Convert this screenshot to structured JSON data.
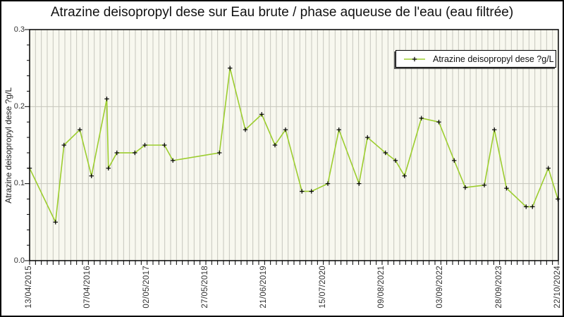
{
  "title": "Atrazine deisopropyl dese sur Eau brute / phase aqueuse de l'eau (eau filtrée)",
  "y_axis_label": "Atrazine deisopropyl dese ?g/L",
  "legend": {
    "label": "Atrazine deisopropyl dese ?g/L"
  },
  "colors": {
    "line": "#9ccd2e",
    "marker": "#000000",
    "plot_bg": "#f8f8ef",
    "grid": "#c6c6bd",
    "frame": "#000000",
    "page_bg": "#ffffff",
    "text": "#222222"
  },
  "chart_data": {
    "type": "line",
    "title": "Atrazine deisopropyl dese sur Eau brute / phase aqueuse de l'eau (eau filtrée)",
    "xlabel": "",
    "ylabel": "Atrazine deisopropyl dese ?g/L",
    "ylim": [
      0.0,
      0.3
    ],
    "y_ticks": [
      0.0,
      0.1,
      0.2,
      0.3
    ],
    "y_tick_labels": [
      "0.0",
      "0.1",
      "0.2",
      "0.3"
    ],
    "y_minor_step": 0.02,
    "h_gridlines_at": [
      0.1,
      0.2
    ],
    "x_tick_labels": [
      "13/04/2015",
      "07/04/2016",
      "02/05/2017",
      "27/05/2018",
      "21/06/2019",
      "15/07/2020",
      "09/08/2021",
      "03/09/2022",
      "28/09/2023",
      "22/10/2024"
    ],
    "x_minor_tick_count": 91,
    "grid": "vertical minor stripes; horizontal lines at 0.1 and 0.2",
    "legend_position": "top-right",
    "x_encoding": "fraction_of_axis_width",
    "series": [
      {
        "name": "Atrazine deisopropyl dese ?g/L",
        "marker": "plus",
        "points": [
          [
            0.0,
            0.12
          ],
          [
            0.049,
            0.05
          ],
          [
            0.065,
            0.15
          ],
          [
            0.095,
            0.17
          ],
          [
            0.117,
            0.11
          ],
          [
            0.146,
            0.21
          ],
          [
            0.149,
            0.12
          ],
          [
            0.165,
            0.14
          ],
          [
            0.199,
            0.14
          ],
          [
            0.218,
            0.15
          ],
          [
            0.255,
            0.15
          ],
          [
            0.271,
            0.13
          ],
          [
            0.359,
            0.14
          ],
          [
            0.379,
            0.25
          ],
          [
            0.408,
            0.17
          ],
          [
            0.439,
            0.19
          ],
          [
            0.464,
            0.15
          ],
          [
            0.484,
            0.17
          ],
          [
            0.515,
            0.09
          ],
          [
            0.533,
            0.09
          ],
          [
            0.564,
            0.1
          ],
          [
            0.585,
            0.17
          ],
          [
            0.623,
            0.1
          ],
          [
            0.639,
            0.16
          ],
          [
            0.673,
            0.14
          ],
          [
            0.692,
            0.13
          ],
          [
            0.709,
            0.11
          ],
          [
            0.741,
            0.185
          ],
          [
            0.774,
            0.18
          ],
          [
            0.803,
            0.13
          ],
          [
            0.824,
            0.095
          ],
          [
            0.86,
            0.098
          ],
          [
            0.879,
            0.17
          ],
          [
            0.902,
            0.094
          ],
          [
            0.939,
            0.07
          ],
          [
            0.951,
            0.07
          ],
          [
            0.981,
            0.12
          ],
          [
            0.999,
            0.08
          ]
        ]
      }
    ]
  }
}
